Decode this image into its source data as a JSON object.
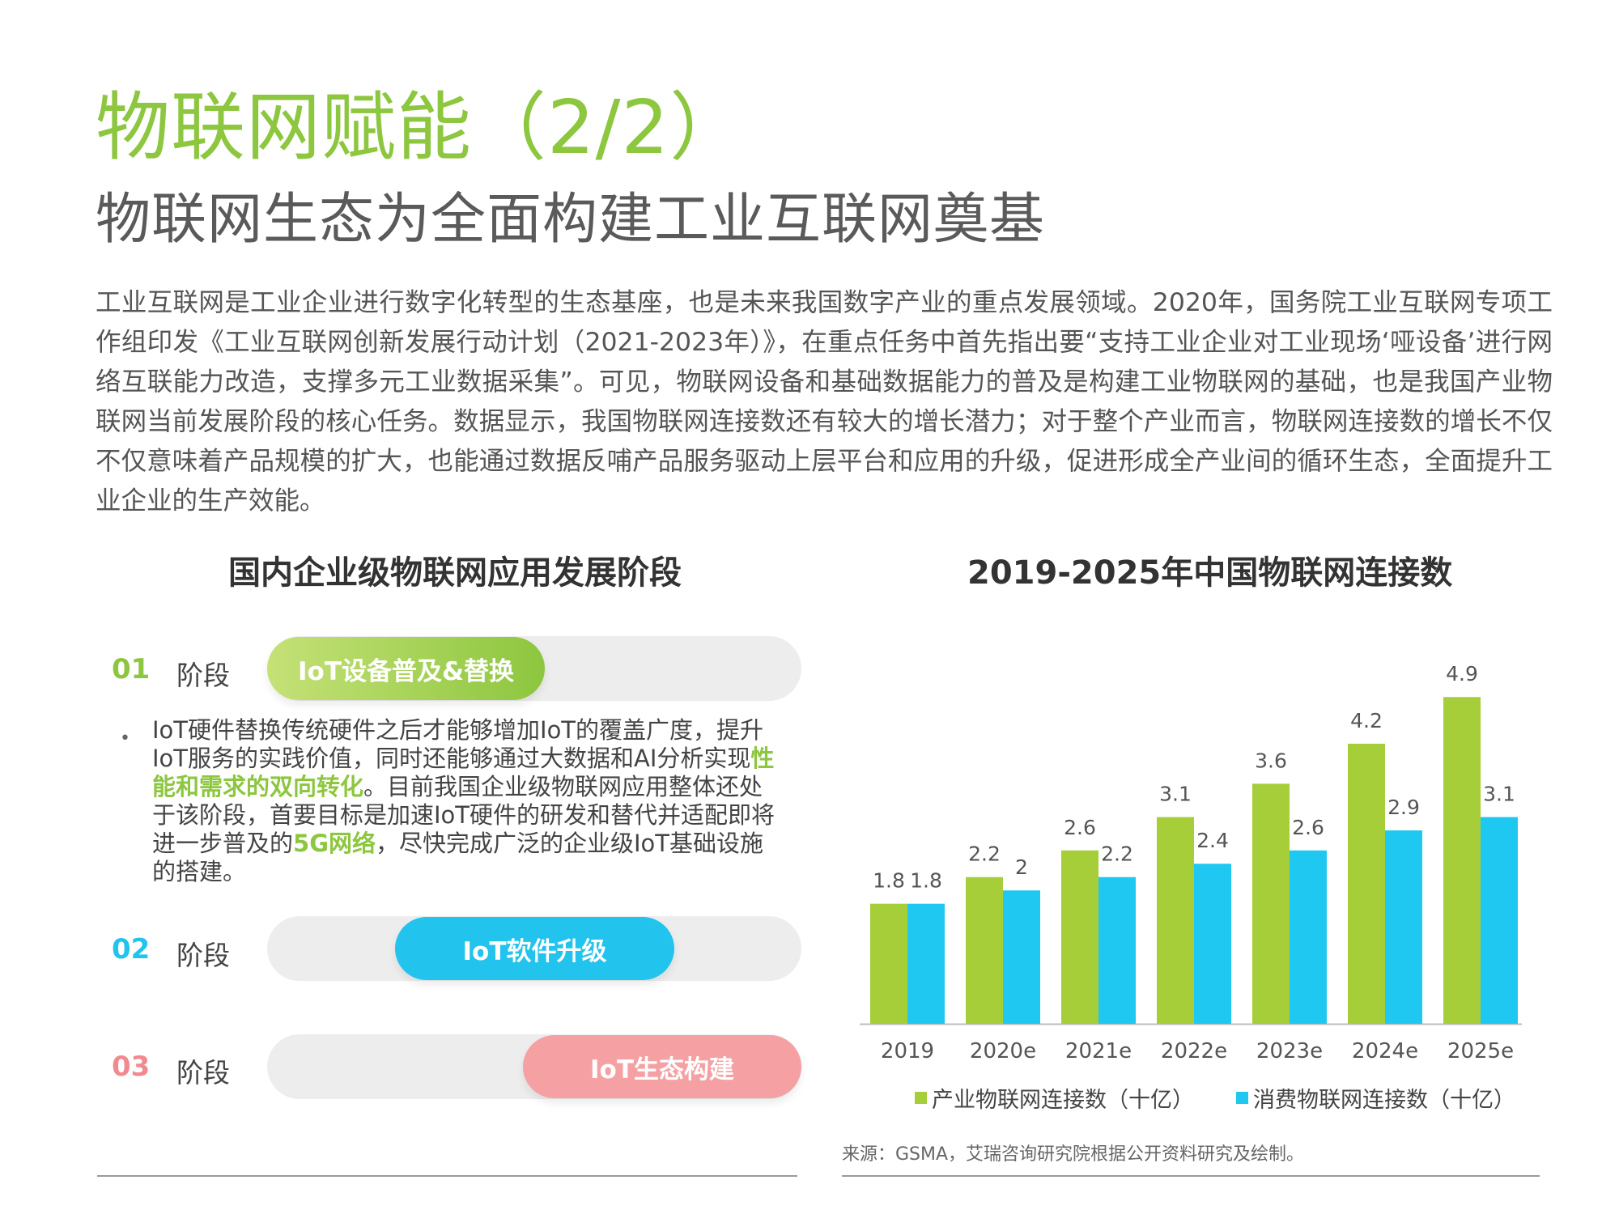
{
  "header": {
    "title": "物联网赋能（2/2）",
    "subtitle": "物联网生态为全面构建工业互联网奠基"
  },
  "intro": "工业互联网是工业企业进行数字化转型的生态基座，也是未来我国数字产业的重点发展领域。2020年，国务院工业互联网专项工作组印发《工业互联网创新发展行动计划（2021-2023年）》，在重点任务中首先指出要“支持工业企业对工业现场‘哑设备’进行网络互联能力改造，支撑多元工业数据采集”。可见，物联网设备和基础数据能力的普及是构建工业物联网的基础，也是我国产业物联网当前发展阶段的核心任务。数据显示，我国物联网连接数还有较大的增长潜力；对于整个产业而言，物联网连接数的增长不仅不仅意味着产品规模的扩大，也能通过数据反哺产品服务驱动上层平台和应用的升级，促进形成全产业间的循环生态，全面提升工业企业的生产效能。",
  "left_panel": {
    "title": "国内企业级物联网应用发展阶段",
    "stages": [
      {
        "num": "01",
        "label": "阶段",
        "pill": "IoT设备普及&替换",
        "color": "#8dc63f"
      },
      {
        "num": "02",
        "label": "阶段",
        "pill": "IoT软件升级",
        "color": "#22c3ec"
      },
      {
        "num": "03",
        "label": "阶段",
        "pill": "IoT生态构建",
        "color": "#f5a0a3"
      }
    ],
    "bullet": {
      "dot": "•",
      "part1": "IoT硬件替换传统硬件之后才能够增加IoT的覆盖广度，提升IoT服务的实践价值，同时还能够通过大数据和AI分析实现",
      "highlight1": "性能和需求的双向转化",
      "part2": "。目前我国企业级物联网应用整体还处于该阶段，首要目标是加速IoT硬件的研发和替代并适配即将进一步普及的",
      "highlight2": "5G网络",
      "part3": "，尽快完成广泛的企业级IoT基础设施的搭建。"
    }
  },
  "chart_data": {
    "type": "bar",
    "title": "2019-2025年中国物联网连接数",
    "categories": [
      "2019",
      "2020e",
      "2021e",
      "2022e",
      "2023e",
      "2024e",
      "2025e"
    ],
    "series": [
      {
        "name": "产业物联网连接数（十亿）",
        "color": "#a6ce39",
        "values": [
          1.8,
          2.2,
          2.6,
          3.1,
          3.6,
          4.2,
          4.9
        ]
      },
      {
        "name": "消费物联网连接数（十亿）",
        "color": "#1ec8f0",
        "values": [
          1.8,
          2.0,
          2.2,
          2.4,
          2.6,
          2.9,
          3.1
        ]
      }
    ],
    "ylim": [
      0,
      5
    ],
    "grid": false,
    "legend": "bottom",
    "data_labels": true
  },
  "source": "来源：GSMA，艾瑞咨询研究院根据公开资料研究及绘制。"
}
